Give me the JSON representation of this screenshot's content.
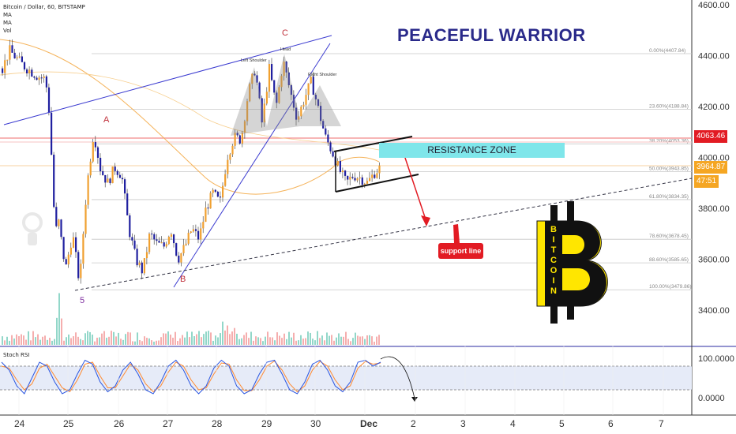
{
  "header": {
    "symbol_line": "Bitcoin / Dollar, 60, BITSTAMP",
    "indicators": [
      "MA",
      "MA",
      "Vol"
    ]
  },
  "annotations": {
    "title": "PEACEFUL WARRIOR",
    "resistance_zone": "RESISTANCE ZONE",
    "support_line": "support line",
    "left_shoulder": "Left Shoulder",
    "head": "Head",
    "right_shoulder": "Right Shoulder",
    "wave_A": "A",
    "wave_B": "B",
    "wave_C": "C",
    "wave_5": "5",
    "bitcoin_letters": [
      "B",
      "I",
      "T",
      "C",
      "O",
      "I",
      "N"
    ]
  },
  "price_tags": {
    "tag1": "4063.46",
    "tag2": "3964.87",
    "tag3": "47:51"
  },
  "colors": {
    "up_candle": "#f0a030",
    "down_candle": "#2020a0",
    "channel": "#3a3ad0",
    "ma": "#f5b35a",
    "resistance": "#7fe6ea",
    "support_label": "#e21b23",
    "title": "#2a2a8a",
    "stoch_k": "#2a55e0",
    "stoch_d": "#ff8a30"
  },
  "chart_data": {
    "type": "candlestick",
    "price_axis": {
      "ticks": [
        "3400.00",
        "3600.00",
        "3800.00",
        "4000.00",
        "4200.00",
        "4400.00",
        "4600.00"
      ],
      "range": [
        3300,
        4625
      ]
    },
    "time_axis": {
      "ticks": [
        "24",
        "25",
        "26",
        "27",
        "28",
        "29",
        "30",
        "Dec",
        "2",
        "3",
        "4",
        "5",
        "6",
        "7"
      ]
    },
    "fib_levels": [
      {
        "label": "0.00%(4407.84)",
        "value": 4407.84
      },
      {
        "label": "23.60%(4188.84)",
        "value": 4188.84
      },
      {
        "label": "38.20%(4053.36)",
        "value": 4053.36
      },
      {
        "label": "50.00%(3943.85)",
        "value": 3943.85
      },
      {
        "label": "61.80%(3834.35)",
        "value": 3834.35
      },
      {
        "label": "78.60%(3678.45)",
        "value": 3678.45
      },
      {
        "label": "88.60%(3585.65)",
        "value": 3585.65
      },
      {
        "label": "100.00%(3479.86)",
        "value": 3479.86
      }
    ],
    "price_path": [
      [
        0,
        4350
      ],
      [
        1,
        4420
      ],
      [
        3,
        4360
      ],
      [
        4,
        4340
      ],
      [
        5,
        4320
      ],
      [
        6,
        4310
      ],
      [
        6.5,
        4250
      ],
      [
        7,
        4000
      ],
      [
        7.5,
        3700
      ],
      [
        8,
        3750
      ],
      [
        8.5,
        3650
      ],
      [
        9,
        3560
      ],
      [
        10,
        3700
      ],
      [
        11,
        3500
      ],
      [
        11.5,
        3700
      ],
      [
        12,
        3880
      ],
      [
        13,
        4100
      ],
      [
        14,
        3950
      ],
      [
        15,
        3900
      ],
      [
        16,
        3960
      ],
      [
        17,
        3930
      ],
      [
        18,
        3720
      ],
      [
        19,
        3600
      ],
      [
        20,
        3550
      ],
      [
        21,
        3700
      ],
      [
        22,
        3660
      ],
      [
        23,
        3650
      ],
      [
        24,
        3720
      ],
      [
        25,
        3600
      ],
      [
        26,
        3650
      ],
      [
        27,
        3720
      ],
      [
        28,
        3680
      ],
      [
        29,
        3800
      ],
      [
        30,
        3860
      ],
      [
        31,
        3820
      ],
      [
        32,
        4000
      ],
      [
        33,
        4080
      ],
      [
        34,
        4070
      ],
      [
        35,
        4250
      ],
      [
        36,
        4350
      ],
      [
        37,
        4130
      ],
      [
        38,
        4350
      ],
      [
        39,
        4200
      ],
      [
        40,
        4380
      ],
      [
        41,
        4260
      ],
      [
        42,
        4150
      ],
      [
        43,
        4230
      ],
      [
        44,
        4300
      ],
      [
        45,
        4190
      ],
      [
        46,
        4080
      ],
      [
        47,
        4020
      ],
      [
        48,
        3950
      ],
      [
        49,
        3900
      ],
      [
        50,
        3930
      ],
      [
        51,
        3920
      ],
      [
        52,
        3900
      ],
      [
        53,
        3940
      ],
      [
        54,
        3964.87
      ]
    ],
    "stoch_rsi": {
      "label": "Stoch RSI",
      "ticks": [
        "100.0000",
        "0.0000"
      ],
      "k": [
        90,
        70,
        30,
        10,
        50,
        90,
        80,
        40,
        10,
        20,
        60,
        95,
        85,
        40,
        15,
        30,
        70,
        90,
        60,
        20,
        10,
        40,
        80,
        95,
        70,
        30,
        10,
        30,
        75,
        95,
        80,
        30,
        10,
        20,
        60,
        90,
        95,
        60,
        20,
        10,
        40,
        85,
        95,
        70,
        30,
        15,
        40,
        90,
        95,
        80,
        90
      ],
      "d": [
        80,
        75,
        45,
        20,
        35,
        75,
        85,
        55,
        25,
        15,
        45,
        85,
        90,
        55,
        25,
        25,
        55,
        85,
        70,
        35,
        15,
        30,
        65,
        90,
        80,
        45,
        20,
        25,
        60,
        88,
        85,
        45,
        18,
        18,
        45,
        80,
        93,
        70,
        35,
        15,
        30,
        70,
        92,
        80,
        45,
        20,
        30,
        75,
        92,
        85,
        88
      ]
    }
  }
}
